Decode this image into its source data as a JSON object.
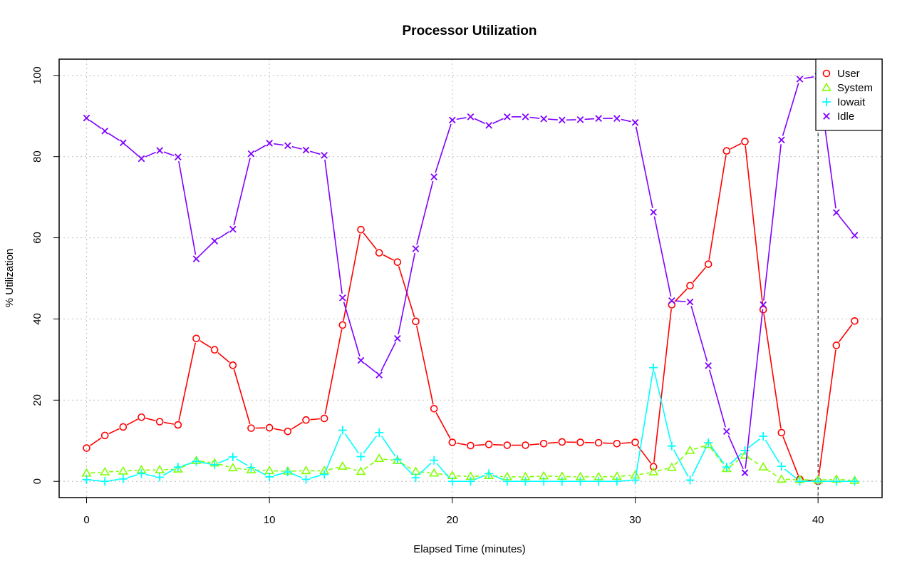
{
  "chart_data": {
    "type": "line",
    "title": "Processor Utilization",
    "xlabel": "Elapsed Time (minutes)",
    "ylabel": "% Utilization",
    "xlim": [
      -1.5,
      43.5
    ],
    "ylim": [
      -4,
      104
    ],
    "xticks": [
      0,
      10,
      20,
      30,
      40
    ],
    "yticks": [
      0,
      20,
      40,
      60,
      80,
      100
    ],
    "grid": true,
    "legend_position": "top-right",
    "vline_x": 40,
    "x": [
      0,
      1,
      2,
      3,
      4,
      5,
      6,
      7,
      8,
      9,
      10,
      11,
      12,
      13,
      14,
      15,
      16,
      17,
      18,
      19,
      20,
      21,
      22,
      23,
      24,
      25,
      26,
      27,
      28,
      29,
      30,
      31,
      32,
      33,
      34,
      35,
      36,
      37,
      38,
      39,
      40,
      41,
      42
    ],
    "series": [
      {
        "name": "User",
        "color": "#ff0000",
        "marker": "circle",
        "line": "solid",
        "values": [
          8.2,
          11.3,
          13.4,
          15.8,
          14.7,
          13.9,
          35.2,
          32.4,
          28.6,
          13.1,
          13.2,
          12.3,
          15.1,
          15.5,
          38.5,
          62.0,
          56.3,
          54.0,
          39.4,
          17.9,
          9.6,
          8.8,
          9.1,
          8.9,
          8.9,
          9.3,
          9.7,
          9.6,
          9.5,
          9.3,
          9.6,
          3.6,
          43.5,
          48.2,
          53.5,
          81.4,
          83.7,
          42.3,
          12.0,
          0.5,
          0.0,
          33.5,
          39.5
        ]
      },
      {
        "name": "System",
        "color": "#80ff00",
        "marker": "triangle",
        "line": "dashed",
        "values": [
          2.0,
          2.3,
          2.5,
          2.8,
          2.8,
          3.0,
          5.1,
          4.5,
          3.3,
          2.8,
          2.6,
          2.5,
          2.6,
          2.6,
          3.7,
          2.4,
          5.6,
          5.1,
          2.4,
          2.0,
          1.4,
          1.2,
          1.4,
          1.1,
          1.1,
          1.3,
          1.2,
          1.1,
          1.1,
          1.2,
          1.5,
          2.3,
          3.4,
          7.6,
          9.0,
          3.1,
          6.4,
          3.5,
          0.5,
          0.4,
          0.3,
          0.5,
          0.2
        ]
      },
      {
        "name": "Iowait",
        "color": "#00ffff",
        "marker": "plus",
        "line": "solid",
        "values": [
          0.4,
          0.0,
          0.6,
          1.9,
          1.0,
          3.5,
          4.9,
          4.1,
          6.0,
          3.4,
          1.1,
          2.3,
          0.5,
          1.7,
          12.6,
          6.1,
          12.0,
          5.4,
          0.9,
          5.2,
          0.0,
          0.0,
          1.9,
          0.0,
          0.0,
          0.0,
          0.0,
          0.0,
          0.0,
          0.0,
          0.3,
          28.0,
          8.7,
          0.3,
          9.5,
          3.5,
          7.6,
          11.1,
          3.7,
          0.0,
          0.0,
          0.0,
          0.0
        ]
      },
      {
        "name": "Idle",
        "color": "#8000ff",
        "marker": "x",
        "line": "solid",
        "values": [
          89.5,
          86.3,
          83.4,
          79.5,
          81.5,
          79.9,
          54.8,
          59.2,
          62.1,
          80.7,
          83.3,
          82.7,
          81.6,
          80.3,
          45.2,
          29.8,
          26.2,
          35.2,
          57.3,
          75.0,
          89.0,
          89.8,
          87.7,
          89.8,
          89.8,
          89.3,
          89.0,
          89.1,
          89.4,
          89.4,
          88.4,
          66.3,
          44.5,
          44.2,
          28.5,
          12.3,
          2.1,
          43.5,
          84.1,
          99.1,
          99.8,
          66.2,
          60.6
        ]
      }
    ]
  }
}
